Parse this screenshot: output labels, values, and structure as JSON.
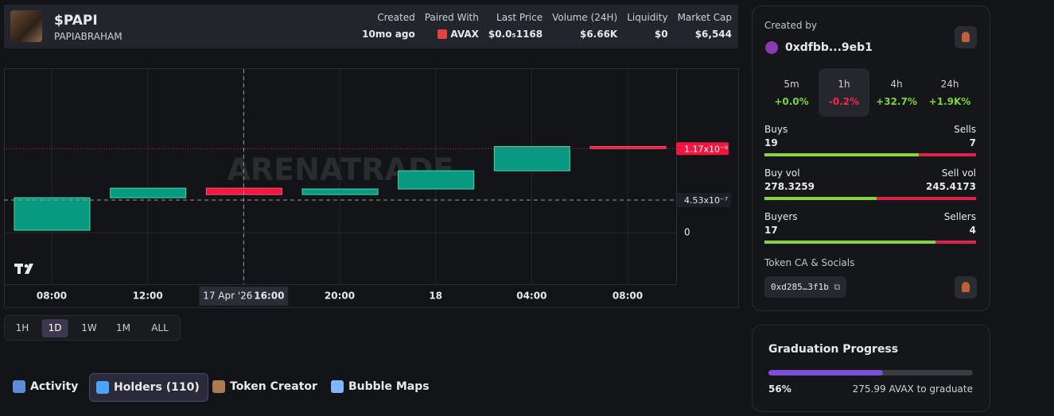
{
  "header": {
    "name": "$PAPI",
    "handle": "PAPIABRAHAM",
    "stats": [
      {
        "label": "Created",
        "value": "10mo ago"
      },
      {
        "label": "Paired With",
        "value": "AVAX"
      },
      {
        "label": "Last Price",
        "value": "$0.0₅1168"
      },
      {
        "label": "Volume (24H)",
        "value": "$6.66K"
      },
      {
        "label": "Liquidity",
        "value": "$0"
      },
      {
        "label": "Market Cap",
        "value": "$6,544"
      }
    ]
  },
  "chart_data": {
    "type": "candlestick",
    "watermark": "ARENATRADE",
    "categories": [
      "08:00",
      "12:00",
      "16:00",
      "20:00",
      "18",
      "04:00",
      "08:00"
    ],
    "open": [
      3.3e-08,
      4.86e-07,
      6.19e-07,
      5.3e-07,
      6.08e-07,
      8.62e-07,
      1.2e-06
    ],
    "close": [
      4.86e-07,
      6.19e-07,
      5.3e-07,
      6.08e-07,
      8.62e-07,
      1.2e-06,
      1.17e-06
    ],
    "up_color": "#089981",
    "down_color": "#f0163f",
    "ylim": [
      -7.2e-07,
      2.28e-06
    ],
    "yticks": [
      0
    ],
    "grid": true,
    "current_price": {
      "value": 1.17e-06,
      "label": "1.17x10⁻⁶"
    },
    "crosshair_price": {
      "value": 4.53e-07,
      "label": "4.53x10⁻⁷"
    },
    "crosshair_category": 2,
    "crosshair_date": "17 Apr '26"
  },
  "timeframes": [
    "1H",
    "1D",
    "1W",
    "1M",
    "ALL"
  ],
  "active_timeframe": 1,
  "tabs": [
    "Activity",
    "Holders (110)",
    "Token Creator",
    "Bubble Maps"
  ],
  "active_tab": 1,
  "creator": {
    "heading": "Created by",
    "address": "0xdfbb...9eb1"
  },
  "changes": [
    {
      "period": "5m",
      "value": "+0.0%"
    },
    {
      "period": "1h",
      "value": "-0.2%"
    },
    {
      "period": "4h",
      "value": "+32.7%"
    },
    {
      "period": "24h",
      "value": "+1.9K%"
    }
  ],
  "active_change": 1,
  "trades": [
    {
      "left_label": "Buys",
      "right_label": "Sells",
      "left": 19,
      "right": 7
    },
    {
      "left_label": "Buy vol",
      "right_label": "Sell vol",
      "left": 278.3259,
      "right": 245.4173
    },
    {
      "left_label": "Buyers",
      "right_label": "Sellers",
      "left": 17,
      "right": 4
    }
  ],
  "socials": {
    "heading": "Token CA & Socials",
    "address": "0xd285…3f1b"
  },
  "graduation": {
    "title": "Graduation Progress",
    "progress": {
      "value": 56,
      "label": "56%"
    },
    "remaining": "275.99 AVAX to graduate"
  }
}
